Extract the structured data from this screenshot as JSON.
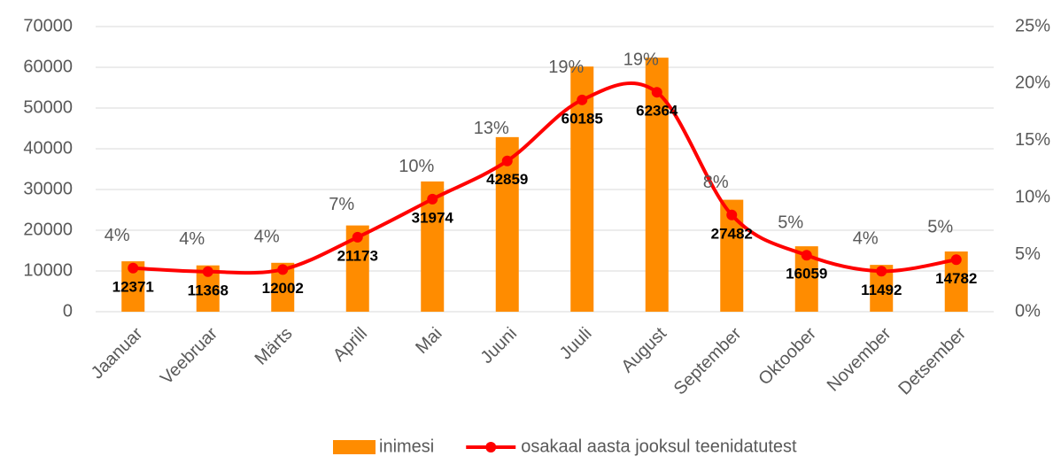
{
  "chart_data": {
    "type": "bar-line",
    "categories": [
      "Jaanuar",
      "Veebruar",
      "Märts",
      "Aprill",
      "Mai",
      "Juuni",
      "Juuli",
      "August",
      "September",
      "Oktoober",
      "November",
      "Detsember"
    ],
    "series": [
      {
        "name": "inimesi",
        "color": "#ff8c00",
        "type": "bar",
        "values": [
          12371,
          11368,
          12002,
          21173,
          31974,
          42859,
          60185,
          62364,
          27482,
          16059,
          11492,
          14782
        ]
      },
      {
        "name": "osakaal aasta jooksul teenidatutest",
        "color": "#ff0000",
        "type": "line",
        "axis": "y2",
        "values": [
          3.82,
          3.51,
          3.7,
          6.53,
          9.87,
          13.22,
          18.57,
          19.24,
          8.48,
          4.95,
          3.55,
          4.56
        ],
        "value_labels": [
          "4%",
          "4%",
          "4%",
          "7%",
          "10%",
          "13%",
          "19%",
          "19%",
          "8%",
          "5%",
          "4%",
          "5%"
        ]
      }
    ],
    "ylim": [
      0,
      70000
    ],
    "yticks": [
      0,
      10000,
      20000,
      30000,
      40000,
      50000,
      60000,
      70000
    ],
    "y2lim": [
      0,
      25
    ],
    "y2ticks": [
      {
        "value": 0,
        "label": "0%"
      },
      {
        "value": 5,
        "label": "5%"
      },
      {
        "value": 10,
        "label": "10%"
      },
      {
        "value": 15,
        "label": "15%"
      },
      {
        "value": 20,
        "label": "20%"
      },
      {
        "value": 25,
        "label": "25%"
      }
    ],
    "grid": true,
    "legend": "bottom"
  }
}
